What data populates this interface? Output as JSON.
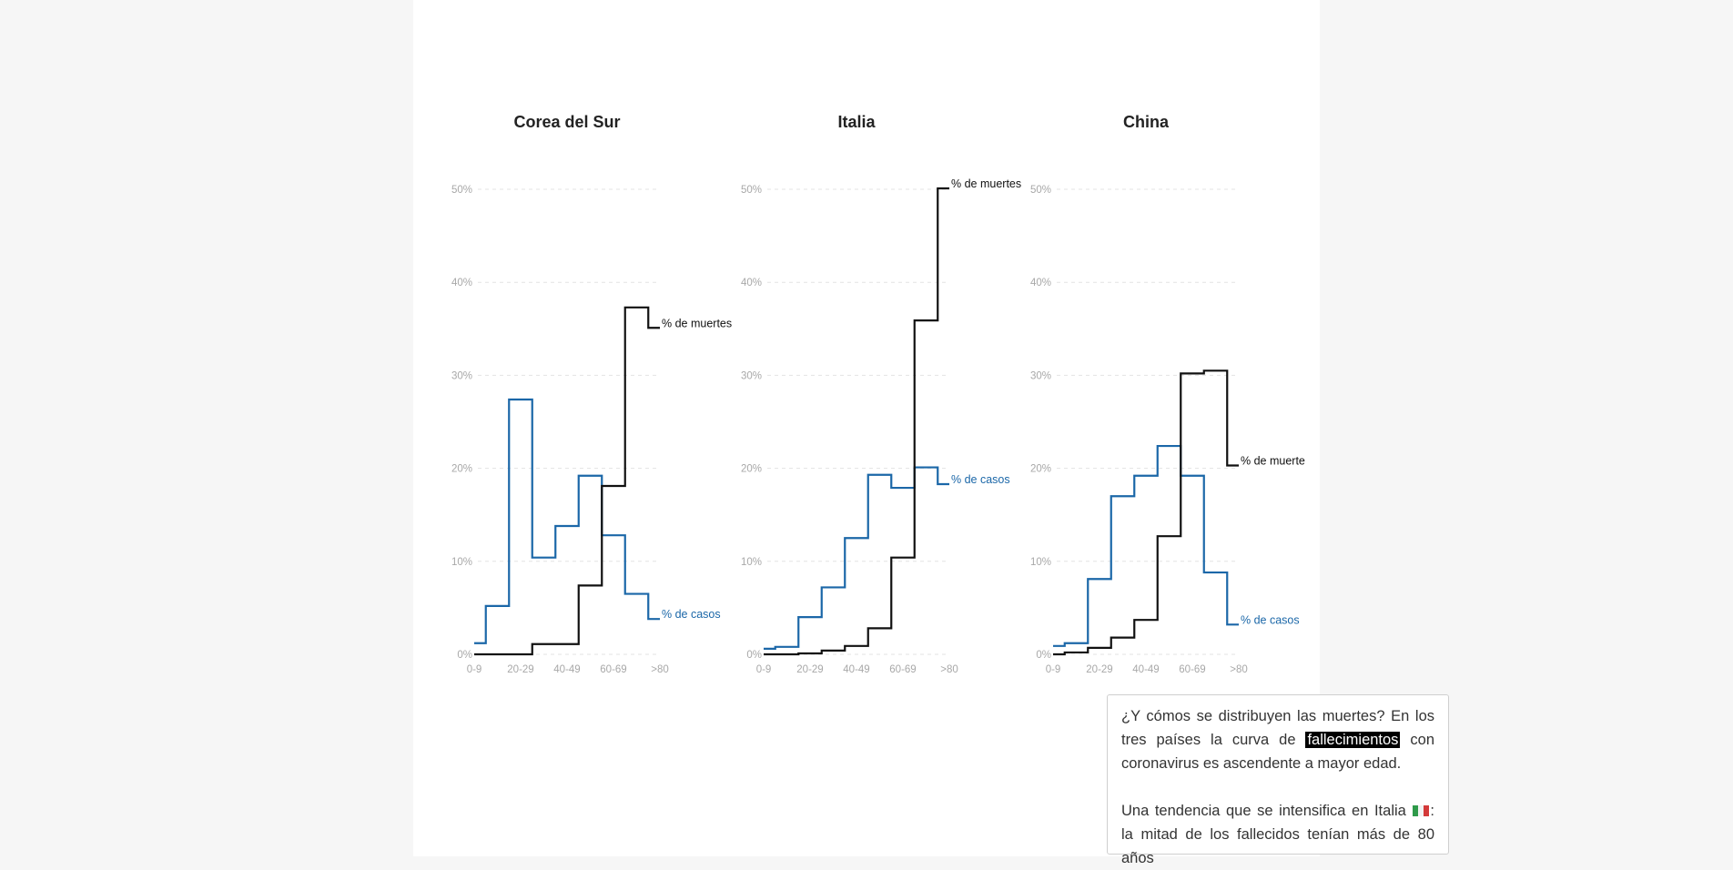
{
  "colors": {
    "cases": "#1b67a8",
    "deaths": "#111111",
    "grid": "#e3e3e3",
    "tick": "#a8a8a8",
    "flag_green": "#2f9a4a",
    "flag_white": "#f2f2f2",
    "flag_red": "#d33a3a"
  },
  "chart_data": [
    {
      "type": "line",
      "step": true,
      "title": "Corea del Sur",
      "categories": [
        "0-9",
        "10-19",
        "20-29",
        "30-39",
        "40-49",
        "50-59",
        "60-69",
        "70-79",
        ">80"
      ],
      "x_tick_labels": [
        "0-9",
        "20-29",
        "40-49",
        "60-69",
        ">80"
      ],
      "y_ticks": [
        0,
        10,
        20,
        30,
        40,
        50
      ],
      "y_tick_labels": [
        "0%",
        "10%",
        "20%",
        "30%",
        "40%",
        "50%"
      ],
      "ylim": [
        0,
        50
      ],
      "series": [
        {
          "key": "cases",
          "name": "% de casos",
          "values": [
            1.2,
            5.2,
            27.4,
            10.4,
            13.8,
            19.2,
            12.8,
            6.5,
            3.8
          ]
        },
        {
          "key": "deaths",
          "name": "% de muertes",
          "values": [
            0,
            0,
            0,
            1.1,
            1.1,
            7.4,
            18.1,
            37.3,
            35.1
          ]
        }
      ]
    },
    {
      "type": "line",
      "step": true,
      "title": "Italia",
      "categories": [
        "0-9",
        "10-19",
        "20-29",
        "30-39",
        "40-49",
        "50-59",
        "60-69",
        "70-79",
        ">80"
      ],
      "x_tick_labels": [
        "0-9",
        "20-29",
        "40-49",
        "60-69",
        ">80"
      ],
      "y_ticks": [
        0,
        10,
        20,
        30,
        40,
        50
      ],
      "y_tick_labels": [
        "0%",
        "10%",
        "20%",
        "30%",
        "40%",
        "50%"
      ],
      "ylim": [
        0,
        50
      ],
      "series": [
        {
          "key": "cases",
          "name": "% de casos",
          "values": [
            0.6,
            0.8,
            4.0,
            7.2,
            12.5,
            19.3,
            17.9,
            20.1,
            18.3
          ]
        },
        {
          "key": "deaths",
          "name": "% de muertes",
          "values": [
            0,
            0,
            0.1,
            0.4,
            0.9,
            2.8,
            10.4,
            35.9,
            50.1
          ]
        }
      ]
    },
    {
      "type": "line",
      "step": true,
      "title": "China",
      "categories": [
        "0-9",
        "10-19",
        "20-29",
        "30-39",
        "40-49",
        "50-59",
        "60-69",
        "70-79",
        ">80"
      ],
      "x_tick_labels": [
        "0-9",
        "20-29",
        "40-49",
        "60-69",
        ">80"
      ],
      "y_ticks": [
        0,
        10,
        20,
        30,
        40,
        50
      ],
      "y_tick_labels": [
        "0%",
        "10%",
        "20%",
        "30%",
        "40%",
        "50%"
      ],
      "ylim": [
        0,
        50
      ],
      "series": [
        {
          "key": "cases",
          "name": "% de casos",
          "values": [
            0.9,
            1.2,
            8.1,
            17.0,
            19.2,
            22.4,
            19.2,
            8.8,
            3.2
          ]
        },
        {
          "key": "deaths",
          "name": "% de muertes",
          "values": [
            0.0,
            0.2,
            0.7,
            1.8,
            3.7,
            12.7,
            30.2,
            30.5,
            20.3
          ]
        }
      ]
    }
  ],
  "annotations": {
    "Corea del Sur": {
      "deaths_label": "% de muertes",
      "cases_label": "% de casos"
    },
    "Italia": {
      "deaths_label": "% de muertes",
      "cases_label": "% de casos"
    },
    "China": {
      "deaths_label": "% de muerte",
      "cases_label": "% de casos"
    }
  },
  "textbox": {
    "p1_before": "¿Y cómos se distribuyen las muertes? En los tres países la curva de ",
    "p1_highlight": "fallecimientos",
    "p1_after": " con coronavirus es ascendente a mayor edad.",
    "p2_before": "Una tendencia que se intensifica en Italia ",
    "flag_icon": "italy-flag-icon",
    "p2_after": ": la mitad de los fallecidos tenían más de 80 años"
  }
}
